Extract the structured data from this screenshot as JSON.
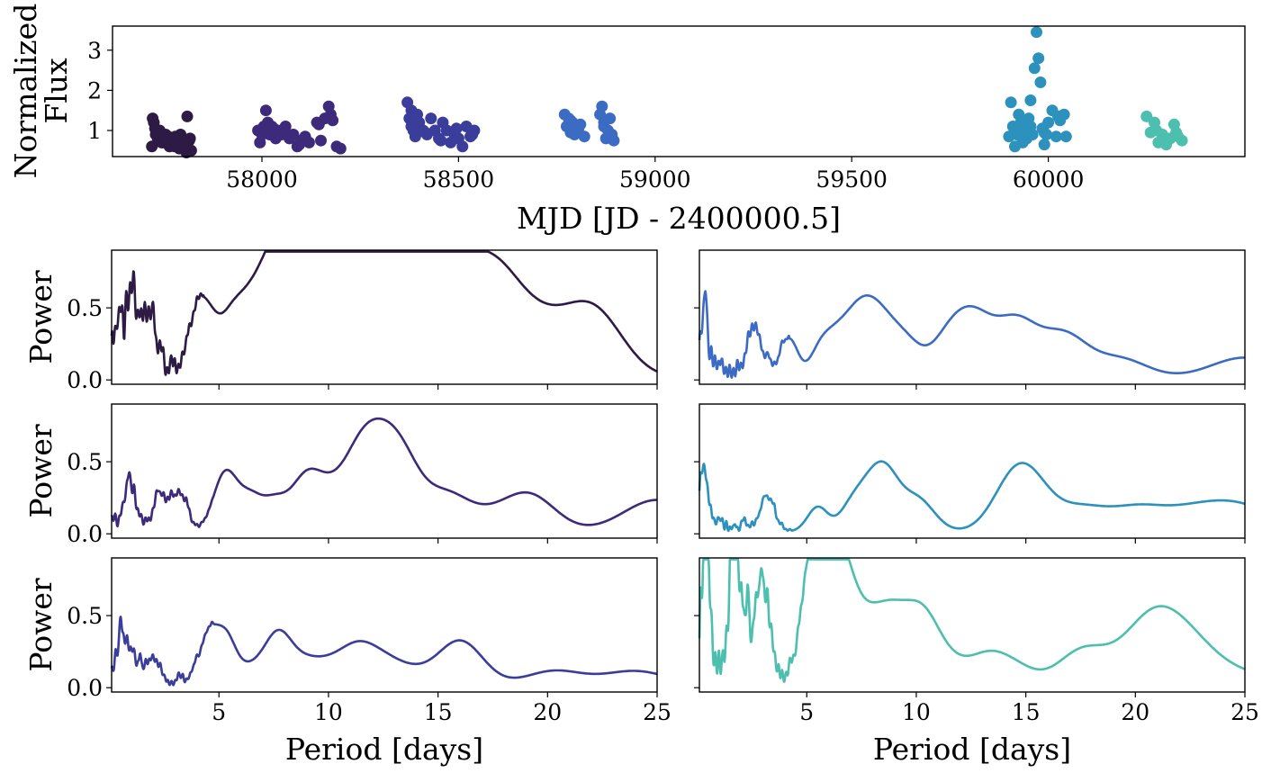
{
  "chart_data": [
    {
      "type": "scatter",
      "xlabel": "MJD [JD - 2400000.5]",
      "ylabel": "Normalized Flux",
      "ylabel_lines": [
        "Normalized",
        "Flux"
      ],
      "xlim": [
        57620,
        60500
      ],
      "ylim": [
        0.35,
        3.6
      ],
      "xticks": [
        58000,
        58500,
        59000,
        59500,
        60000
      ],
      "yticks": [
        1,
        2,
        3
      ],
      "grid": false,
      "series": [
        {
          "color": "#2d1a45",
          "x": [
            57720,
            57725,
            57730,
            57735,
            57740,
            57745,
            57750,
            57755,
            57760,
            57765,
            57770,
            57775,
            57780,
            57785,
            57790,
            57795,
            57800,
            57805,
            57810,
            57815,
            57820,
            57722,
            57733,
            57748,
            57762,
            57778,
            57793,
            57808,
            57817,
            57728,
            57752,
            57770,
            57786,
            57803
          ],
          "y": [
            0.6,
            1.2,
            0.9,
            0.8,
            1.0,
            0.7,
            0.8,
            0.9,
            0.75,
            0.6,
            0.8,
            0.7,
            0.85,
            0.65,
            0.55,
            0.8,
            0.7,
            0.6,
            1.35,
            0.75,
            0.5,
            1.3,
            0.95,
            0.7,
            0.85,
            0.6,
            0.9,
            0.45,
            0.8,
            1.05,
            0.72,
            0.68,
            0.78,
            0.62
          ]
        },
        {
          "color": "#3d2a7a",
          "x": [
            57990,
            57995,
            58000,
            58005,
            58010,
            58015,
            58020,
            58025,
            58030,
            58035,
            58040,
            58050,
            58060,
            58070,
            58080,
            58090,
            58100,
            58110,
            58120,
            58140,
            58150,
            58160,
            58170,
            58180,
            58190,
            58200,
            58010,
            58030,
            58055,
            58095,
            58145,
            58175
          ],
          "y": [
            1.0,
            0.7,
            0.9,
            1.1,
            1.5,
            1.2,
            0.9,
            1.1,
            1.0,
            0.8,
            1.0,
            0.9,
            1.1,
            0.8,
            0.9,
            0.6,
            0.75,
            0.85,
            0.7,
            1.2,
            0.75,
            1.3,
            1.6,
            1.25,
            0.6,
            0.55,
            1.0,
            1.05,
            0.95,
            0.65,
            1.15,
            1.4
          ]
        },
        {
          "color": "#3b3d9a",
          "x": [
            58370,
            58375,
            58380,
            58385,
            58390,
            58395,
            58400,
            58410,
            58420,
            58430,
            58440,
            58450,
            58460,
            58470,
            58480,
            58490,
            58500,
            58510,
            58520,
            58530,
            58540,
            58380,
            58415,
            58455,
            58495,
            58535
          ],
          "y": [
            1.7,
            1.3,
            1.5,
            1.0,
            0.85,
            1.4,
            1.2,
            1.0,
            0.9,
            1.3,
            1.0,
            0.8,
            1.2,
            1.0,
            0.7,
            0.9,
            0.8,
            0.6,
            1.1,
            0.85,
            1.0,
            1.1,
            0.95,
            0.75,
            1.05,
            0.9
          ]
        },
        {
          "color": "#3c6bc4",
          "x": [
            58770,
            58775,
            58780,
            58785,
            58790,
            58795,
            58800,
            58810,
            58820,
            58860,
            58865,
            58870,
            58875,
            58880,
            58885,
            58890,
            58895,
            58785,
            58805,
            58870
          ],
          "y": [
            1.4,
            1.1,
            1.3,
            0.95,
            1.2,
            0.9,
            1.0,
            1.15,
            0.85,
            1.4,
            1.6,
            1.2,
            0.8,
            1.0,
            1.3,
            0.9,
            0.75,
            1.25,
            1.05,
            1.1
          ]
        },
        {
          "color": "#2d91bd",
          "x": [
            59900,
            59905,
            59910,
            59915,
            59920,
            59925,
            59930,
            59935,
            59940,
            59945,
            59950,
            59955,
            59960,
            59965,
            59970,
            59975,
            59980,
            59985,
            59990,
            59995,
            60000,
            60010,
            60020,
            60030,
            60040,
            60045,
            59915,
            59935,
            59955,
            59990,
            60025
          ],
          "y": [
            0.85,
            1.7,
            1.1,
            0.6,
            0.9,
            1.4,
            1.2,
            0.7,
            1.0,
            0.8,
            1.3,
            1.75,
            0.9,
            2.55,
            3.45,
            2.8,
            2.2,
            1.05,
            0.65,
            0.9,
            1.2,
            1.5,
            0.85,
            1.25,
            1.4,
            0.85,
            1.0,
            0.75,
            1.1,
            0.95,
            1.35
          ]
        },
        {
          "color": "#4dbfae",
          "x": [
            60250,
            60260,
            60270,
            60280,
            60290,
            60300,
            60310,
            60320,
            60330,
            60340,
            60275,
            60325
          ],
          "y": [
            1.35,
            0.95,
            1.2,
            0.7,
            0.9,
            0.65,
            0.8,
            1.15,
            0.85,
            0.75,
            1.0,
            0.95
          ]
        }
      ]
    },
    {
      "type": "line",
      "panel": "periodogram-1",
      "color": "#2d1a45",
      "xlabel": "",
      "ylabel": "Power",
      "xlim": [
        0.1,
        25
      ],
      "ylim": [
        -0.03,
        0.9
      ],
      "yticks": [
        0.0,
        0.5
      ],
      "ytick_labels": [
        "0.0",
        "0.5"
      ],
      "xticks": [
        5,
        10,
        15,
        20,
        25
      ],
      "xtick_labels": [],
      "peaks": [
        [
          1.0,
          0.55
        ],
        [
          1.8,
          0.4
        ],
        [
          4.0,
          0.4
        ],
        [
          4.6,
          0.33
        ],
        [
          5.4,
          0.28
        ],
        [
          6.0,
          0.28
        ],
        [
          6.6,
          0.3
        ],
        [
          7.2,
          0.38
        ],
        [
          7.8,
          0.42
        ],
        [
          8.3,
          0.44
        ],
        [
          8.9,
          0.49
        ],
        [
          9.5,
          0.5
        ],
        [
          10.2,
          0.37
        ],
        [
          11.0,
          0.66
        ],
        [
          12.0,
          0.6
        ],
        [
          13.0,
          0.71
        ],
        [
          14.0,
          0.5
        ],
        [
          15.0,
          0.58
        ],
        [
          16.3,
          0.4
        ],
        [
          17.7,
          0.55
        ],
        [
          19.5,
          0.3
        ],
        [
          22.0,
          0.48
        ]
      ],
      "noise_until": 4.3,
      "noise_level": 0.15,
      "noise_amp": 0.2
    },
    {
      "type": "line",
      "panel": "periodogram-2",
      "color": "#3d2a7a",
      "xlabel": "",
      "ylabel": "Power",
      "xlim": [
        0.1,
        25
      ],
      "ylim": [
        -0.03,
        0.9
      ],
      "yticks": [
        0.0,
        0.5
      ],
      "ytick_labels": [
        "0.0",
        "0.5"
      ],
      "xticks": [
        5,
        10,
        15,
        20,
        25
      ],
      "xtick_labels": [],
      "peaks": [
        [
          0.9,
          0.32
        ],
        [
          2.3,
          0.22
        ],
        [
          3.2,
          0.25
        ],
        [
          5.0,
          0.2
        ],
        [
          5.5,
          0.27
        ],
        [
          6.4,
          0.22
        ],
        [
          7.5,
          0.2
        ],
        [
          8.8,
          0.26
        ],
        [
          9.5,
          0.18
        ],
        [
          10.3,
          0.15
        ],
        [
          11.4,
          0.4
        ],
        [
          12.3,
          0.33
        ],
        [
          13.3,
          0.45
        ],
        [
          15.3,
          0.23
        ],
        [
          16.9,
          0.08
        ],
        [
          19.1,
          0.26
        ],
        [
          25.0,
          0.22
        ]
      ],
      "noise_until": 4.8,
      "noise_level": 0.06,
      "noise_amp": 0.1
    },
    {
      "type": "line",
      "panel": "periodogram-3",
      "color": "#3b3d9a",
      "xlabel": "Period [days]",
      "ylabel": "Power",
      "xlim": [
        0.1,
        25
      ],
      "ylim": [
        -0.03,
        0.9
      ],
      "yticks": [
        0.0,
        0.5
      ],
      "ytick_labels": [
        "0.0",
        "0.5"
      ],
      "xticks": [
        5,
        10,
        15,
        20,
        25
      ],
      "xtick_labels": [
        "5",
        "10",
        "15",
        "20",
        "25"
      ],
      "peaks": [
        [
          0.5,
          0.25
        ],
        [
          1.0,
          0.2
        ],
        [
          2.0,
          0.17
        ],
        [
          4.5,
          0.32
        ],
        [
          5.3,
          0.33
        ],
        [
          6.2,
          0.08
        ],
        [
          6.9,
          0.08
        ],
        [
          7.7,
          0.31
        ],
        [
          8.4,
          0.06
        ],
        [
          9.0,
          0.11
        ],
        [
          10.0,
          0.11
        ],
        [
          11.2,
          0.21
        ],
        [
          12.3,
          0.15
        ],
        [
          13.6,
          0.09
        ],
        [
          16.0,
          0.31
        ],
        [
          20.3,
          0.1
        ],
        [
          24.0,
          0.1
        ]
      ],
      "noise_until": 4.8,
      "noise_level": 0.06,
      "noise_amp": 0.12
    },
    {
      "type": "line",
      "panel": "periodogram-4",
      "color": "#3c6bc4",
      "xlabel": "",
      "ylabel": "",
      "xlim": [
        0.1,
        25
      ],
      "ylim": [
        -0.03,
        0.9
      ],
      "yticks": [
        0.0,
        0.5
      ],
      "ytick_labels": [],
      "xticks": [
        5,
        10,
        15,
        20,
        25
      ],
      "xtick_labels": [],
      "peaks": [
        [
          0.3,
          0.35
        ],
        [
          2.6,
          0.3
        ],
        [
          4.2,
          0.27
        ],
        [
          5.6,
          0.18
        ],
        [
          6.3,
          0.2
        ],
        [
          7.0,
          0.22
        ],
        [
          7.6,
          0.26
        ],
        [
          8.2,
          0.24
        ],
        [
          8.8,
          0.16
        ],
        [
          9.6,
          0.2
        ],
        [
          11.4,
          0.23
        ],
        [
          12.6,
          0.37
        ],
        [
          14.5,
          0.37
        ],
        [
          16.7,
          0.29
        ],
        [
          19.3,
          0.13
        ],
        [
          25.0,
          0.14
        ]
      ],
      "noise_until": 4.2,
      "noise_level": 0.1,
      "noise_amp": 0.12
    },
    {
      "type": "line",
      "panel": "periodogram-5",
      "color": "#2d91bd",
      "xlabel": "",
      "ylabel": "",
      "xlim": [
        0.1,
        25
      ],
      "ylim": [
        -0.03,
        0.9
      ],
      "yticks": [
        0.0,
        0.5
      ],
      "ytick_labels": [],
      "xticks": [
        5,
        10,
        15,
        20,
        25
      ],
      "xtick_labels": [],
      "peaks": [
        [
          0.3,
          0.42
        ],
        [
          3.2,
          0.2
        ],
        [
          5.5,
          0.17
        ],
        [
          7.0,
          0.15
        ],
        [
          7.8,
          0.2
        ],
        [
          8.6,
          0.36
        ],
        [
          9.8,
          0.12
        ],
        [
          10.3,
          0.12
        ],
        [
          14.3,
          0.23
        ],
        [
          15.2,
          0.29
        ],
        [
          17.5,
          0.15
        ],
        [
          20.0,
          0.15
        ],
        [
          22.5,
          0.12
        ],
        [
          24.8,
          0.17
        ]
      ],
      "noise_until": 4.3,
      "noise_level": 0.05,
      "noise_amp": 0.1
    },
    {
      "type": "line",
      "panel": "periodogram-6",
      "color": "#4dbfae",
      "xlabel": "Period [days]",
      "ylabel": "",
      "xlim": [
        0.1,
        25
      ],
      "ylim": [
        -0.03,
        0.9
      ],
      "yticks": [
        0.0,
        0.5
      ],
      "ytick_labels": [],
      "xticks": [
        5,
        10,
        15,
        20,
        25
      ],
      "xtick_labels": [
        "5",
        "10",
        "15",
        "20",
        "25"
      ],
      "peaks": [
        [
          0.4,
          0.85
        ],
        [
          1.8,
          0.7
        ],
        [
          3.0,
          0.6
        ],
        [
          5.2,
          0.75
        ],
        [
          5.9,
          0.84
        ],
        [
          6.7,
          0.66
        ],
        [
          7.6,
          0.33
        ],
        [
          8.5,
          0.33
        ],
        [
          9.3,
          0.28
        ],
        [
          10.3,
          0.41
        ],
        [
          11.4,
          0.14
        ],
        [
          13.1,
          0.17
        ],
        [
          14.4,
          0.13
        ],
        [
          17.6,
          0.24
        ],
        [
          20.6,
          0.38
        ],
        [
          22.3,
          0.28
        ],
        [
          25.0,
          0.07
        ]
      ],
      "noise_until": 5.0,
      "noise_level": 0.2,
      "noise_amp": 0.35
    }
  ]
}
